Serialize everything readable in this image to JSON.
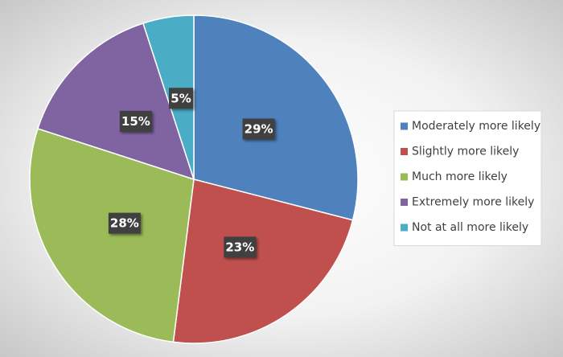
{
  "chart_data": {
    "type": "pie",
    "categories": [
      "Moderately more likely",
      "Slightly more likely",
      "Much more likely",
      "Extremely more likely",
      "Not at all more likely"
    ],
    "values": [
      29,
      23,
      28,
      15,
      5
    ],
    "value_labels": [
      "29%",
      "23%",
      "28%",
      "15%",
      "5%"
    ],
    "colors": [
      "#4f81bd",
      "#c0504d",
      "#9bbb59",
      "#8064a2",
      "#4bacc6"
    ],
    "legend": "right"
  }
}
